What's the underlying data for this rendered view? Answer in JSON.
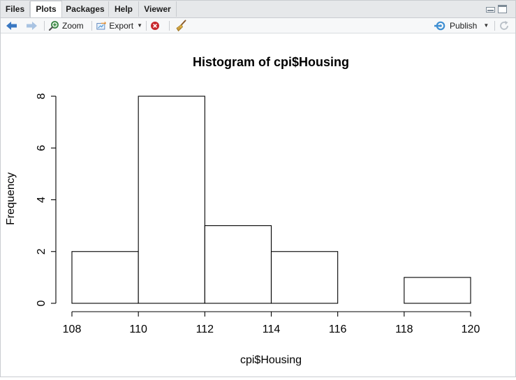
{
  "tabs": [
    {
      "label": "Files"
    },
    {
      "label": "Plots"
    },
    {
      "label": "Packages"
    },
    {
      "label": "Help"
    },
    {
      "label": "Viewer"
    }
  ],
  "active_tab": "Plots",
  "toolbar": {
    "zoom_label": "Zoom",
    "export_label": "Export",
    "publish_label": "Publish"
  },
  "colors": {
    "tabbar_bg": "#e6e8ea",
    "toolbar_bg": "#f7f8f9",
    "back_arrow": "#3a78c2",
    "forward_arrow": "#a9c3e2",
    "publish_icon": "#3f8fd2",
    "remove_icon": "#c8272c"
  },
  "icons": [
    "back-arrow-icon",
    "forward-arrow-icon",
    "zoom-icon",
    "export-icon",
    "remove-plot-icon",
    "clear-all-broom-icon",
    "publish-icon",
    "refresh-icon"
  ],
  "chart_data": {
    "type": "bar",
    "title": "Histogram of cpi$Housing",
    "xlabel": "cpi$Housing",
    "ylabel": "Frequency",
    "bins": [
      [
        108,
        110
      ],
      [
        110,
        112
      ],
      [
        112,
        114
      ],
      [
        114,
        116
      ],
      [
        116,
        118
      ],
      [
        118,
        120
      ]
    ],
    "values": [
      2,
      8,
      3,
      2,
      0,
      1
    ],
    "x_ticks": [
      "108",
      "110",
      "112",
      "114",
      "116",
      "118",
      "120"
    ],
    "y_ticks": [
      "0",
      "2",
      "4",
      "6",
      "8"
    ],
    "xlim": [
      108,
      120
    ],
    "ylim": [
      0,
      8
    ],
    "grid": false
  }
}
